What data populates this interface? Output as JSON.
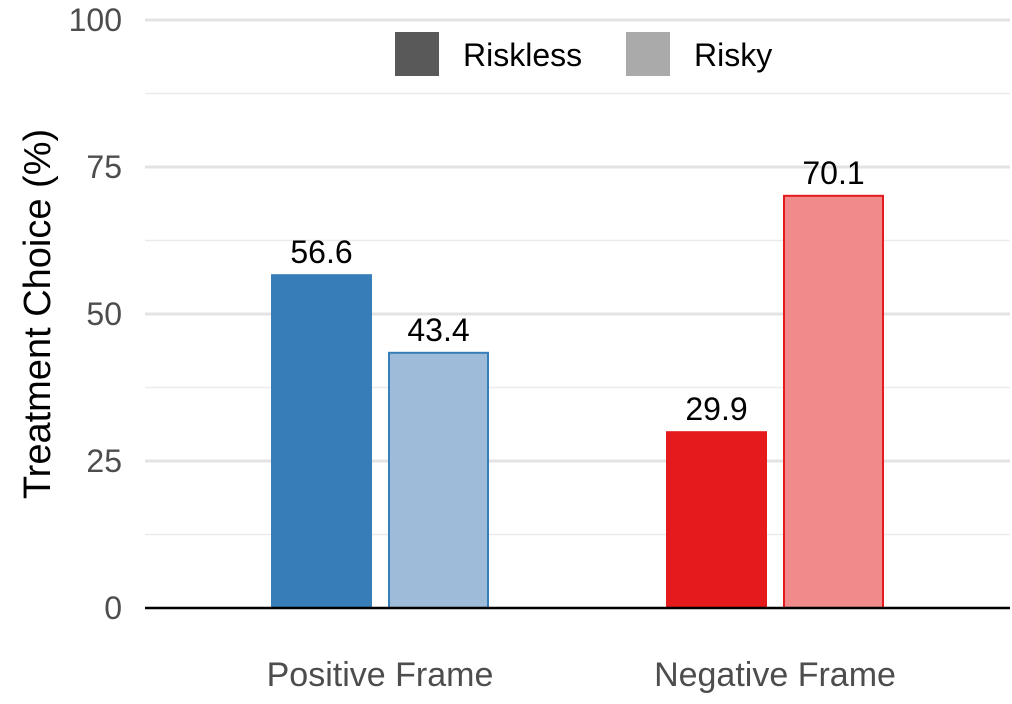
{
  "chart_data": {
    "type": "bar",
    "title": "",
    "xlabel": "",
    "ylabel": "Treatment Choice (%)",
    "ylim": [
      0,
      100
    ],
    "yticks": [
      0,
      25,
      50,
      75,
      100
    ],
    "grid": true,
    "legend_position": "top-center",
    "categories": [
      "Positive Frame",
      "Negative Frame"
    ],
    "series": [
      {
        "name": "Riskless",
        "values": [
          56.6,
          29.9
        ],
        "labels": [
          "56.6",
          "29.9"
        ]
      },
      {
        "name": "Risky",
        "values": [
          43.4,
          70.1
        ],
        "labels": [
          "43.4",
          "70.1"
        ]
      }
    ],
    "colors": {
      "Positive Frame": {
        "Riskless": "#377eb8",
        "Risky": "#9ebcda"
      },
      "Negative Frame": {
        "Riskless": "#e41a1c",
        "Risky": "#f08a8b"
      },
      "legend": {
        "Riskless": "#595959",
        "Risky": "#aaaaaa"
      }
    }
  }
}
